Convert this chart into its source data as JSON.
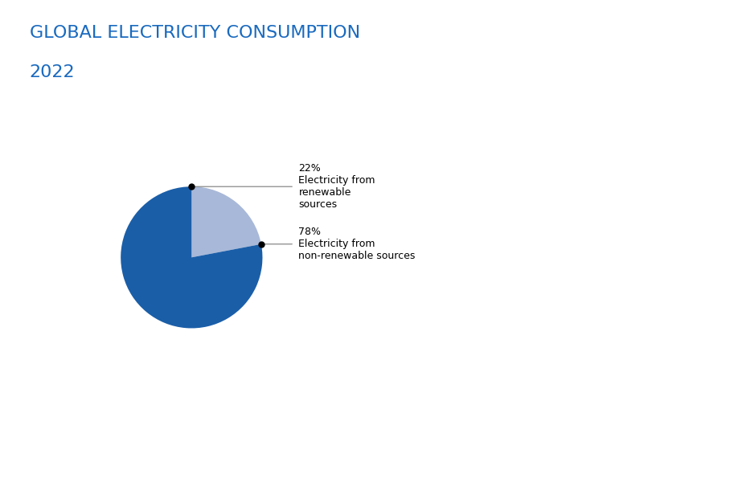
{
  "title_line1": "GLOBAL ELECTRICITY CONSUMPTION",
  "title_line2": "2022",
  "title_color": "#1a6abf",
  "title_fontsize": 16,
  "slices": [
    22,
    78
  ],
  "colors": [
    "#a8b8d8",
    "#1a5ea8"
  ],
  "label_22": "22%\nElectricity from\nrenewable\nsources",
  "label_78": "78%\nElectricity from\nnon-renewable sources",
  "background_color": "#ffffff"
}
